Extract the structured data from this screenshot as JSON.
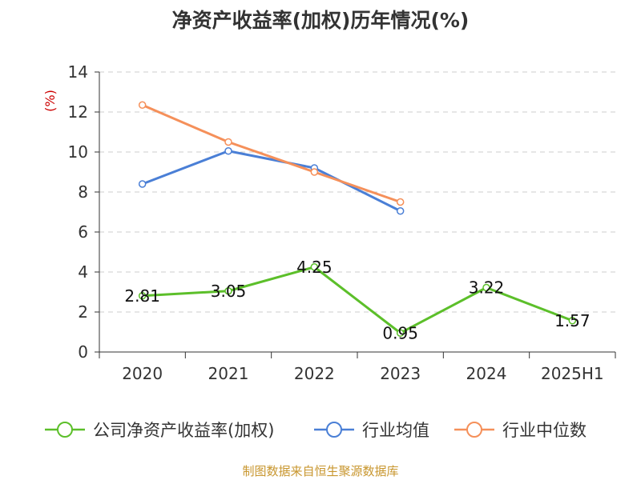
{
  "title": "净资产收益率(加权)历年情况(%)",
  "source": "制图数据来自恒生聚源数据库",
  "colors": {
    "company": "#5cbf2a",
    "industry_avg": "#4a7fd6",
    "industry_median": "#f5905a",
    "grid": "#cccccc",
    "axis": "#333333",
    "unit": "#cc0000"
  },
  "chart_data": {
    "type": "line",
    "categories": [
      "2020",
      "2021",
      "2022",
      "2023",
      "2024",
      "2025H1"
    ],
    "ylabel": "(%)",
    "ylim": [
      0,
      14
    ],
    "yticks": [
      0,
      2,
      4,
      6,
      8,
      10,
      12,
      14
    ],
    "grid": true,
    "legend_position": "bottom",
    "series": [
      {
        "name": "公司净资产收益率(加权)",
        "color": "#5cbf2a",
        "values": [
          2.81,
          3.05,
          4.25,
          0.95,
          3.22,
          1.57
        ],
        "labels": [
          "2.81",
          "3.05",
          "4.25",
          "0.95",
          "3.22",
          "1.57"
        ]
      },
      {
        "name": "行业均值",
        "color": "#4a7fd6",
        "values": [
          8.4,
          10.05,
          9.2,
          7.05,
          null,
          null
        ]
      },
      {
        "name": "行业中位数",
        "color": "#f5905a",
        "values": [
          12.35,
          10.5,
          9.0,
          7.5,
          null,
          null
        ]
      }
    ]
  }
}
